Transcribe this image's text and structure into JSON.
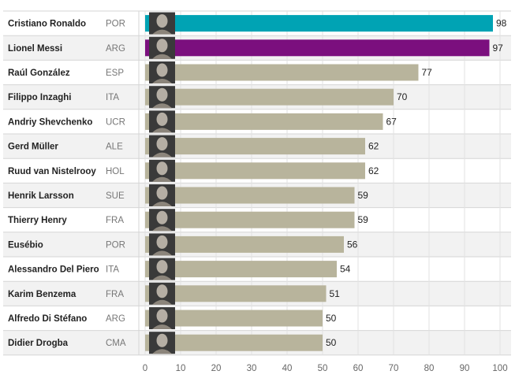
{
  "chart_data": {
    "type": "bar",
    "orientation": "horizontal",
    "title": "",
    "xlabel": "",
    "ylabel": "",
    "xlim": [
      0,
      100
    ],
    "xticks": [
      0,
      10,
      20,
      30,
      40,
      50,
      60,
      70,
      80,
      90,
      100
    ],
    "grid": true,
    "rows": [
      {
        "name": "Cristiano Ronaldo",
        "country": "POR",
        "value": 98,
        "color": "#00a3b4"
      },
      {
        "name": "Lionel Messi",
        "country": "ARG",
        "value": 97,
        "color": "#7b0f7e"
      },
      {
        "name": "Raúl González",
        "country": "ESP",
        "value": 77,
        "color": "#b8b49c"
      },
      {
        "name": "Filippo Inzaghi",
        "country": "ITA",
        "value": 70,
        "color": "#b8b49c"
      },
      {
        "name": "Andriy Shevchenko",
        "country": "UCR",
        "value": 67,
        "color": "#b8b49c"
      },
      {
        "name": "Gerd Müller",
        "country": "ALE",
        "value": 62,
        "color": "#b8b49c"
      },
      {
        "name": "Ruud van Nistelrooy",
        "country": "HOL",
        "value": 62,
        "color": "#b8b49c"
      },
      {
        "name": "Henrik Larsson",
        "country": "SUE",
        "value": 59,
        "color": "#b8b49c"
      },
      {
        "name": "Thierry Henry",
        "country": "FRA",
        "value": 59,
        "color": "#b8b49c"
      },
      {
        "name": "Eusébio",
        "country": "POR",
        "value": 56,
        "color": "#b8b49c"
      },
      {
        "name": "Alessandro Del Piero",
        "country": "ITA",
        "value": 54,
        "color": "#b8b49c"
      },
      {
        "name": "Karim Benzema",
        "country": "FRA",
        "value": 51,
        "color": "#b8b49c"
      },
      {
        "name": "Alfredo Di Stéfano",
        "country": "ARG",
        "value": 50,
        "color": "#b8b49c"
      },
      {
        "name": "Didier Drogba",
        "country": "CMA",
        "value": 50,
        "color": "#b8b49c"
      }
    ]
  },
  "colors": {
    "row_alt_background": "#f2f2f2",
    "row_divider": "#d6d6d6",
    "gridline": "#e2e2e2",
    "photo_placeholder": "#3a3a3a"
  },
  "icons": {
    "player_photo": "player-photo-icon"
  }
}
